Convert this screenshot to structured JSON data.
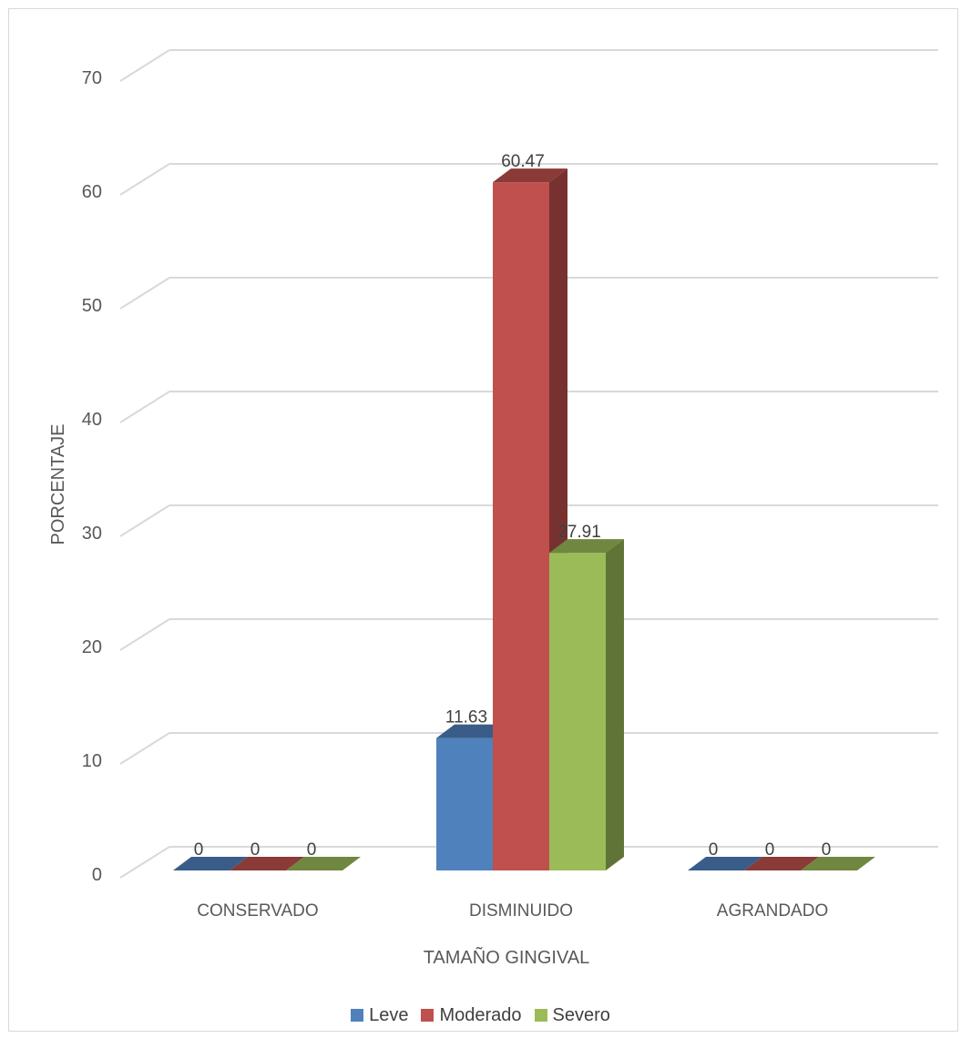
{
  "chart_data": {
    "type": "bar",
    "title": "",
    "xlabel": "TAMAÑO GINGIVAL",
    "ylabel": "PORCENTAJE",
    "categories": [
      "CONSERVADO",
      "DISMINUIDO",
      "AGRANDADO"
    ],
    "series": [
      {
        "name": "Leve",
        "values": [
          0,
          11.63,
          0
        ],
        "color": "#4f81bd"
      },
      {
        "name": "Moderado",
        "values": [
          0,
          60.47,
          0
        ],
        "color": "#c0504d"
      },
      {
        "name": "Severo",
        "values": [
          0,
          27.91,
          0
        ],
        "color": "#9bbb59"
      }
    ],
    "data_labels": [
      [
        "0",
        "11.63",
        "0"
      ],
      [
        "0",
        "60.47",
        "0"
      ],
      [
        "0",
        "27.91",
        "0"
      ]
    ],
    "yticks": [
      "0",
      "10",
      "20",
      "30",
      "40",
      "50",
      "60",
      "70"
    ],
    "ylim": [
      0,
      70
    ],
    "grid": true,
    "style": "3d-clustered-column",
    "legend_position": "bottom"
  }
}
